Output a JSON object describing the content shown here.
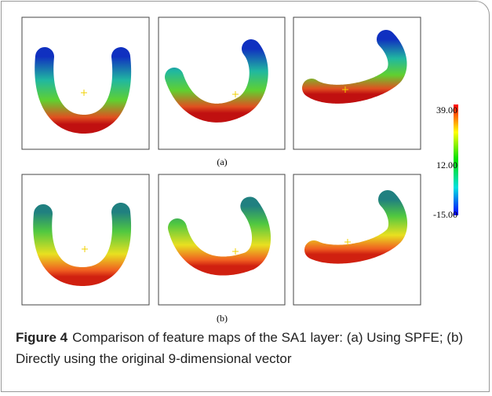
{
  "figure": {
    "panels": {
      "a": {
        "label": "(a)"
      },
      "b": {
        "label": "(b)"
      }
    },
    "colorbar": {
      "ticks": [
        "39.00",
        "12.00",
        "-15.00"
      ]
    },
    "caption": {
      "label": "Figure 4",
      "text": "Comparison of feature maps of the SA1 layer: (a) Using SPFE; (b) Directly using the original 9-dimensional vector"
    }
  }
}
